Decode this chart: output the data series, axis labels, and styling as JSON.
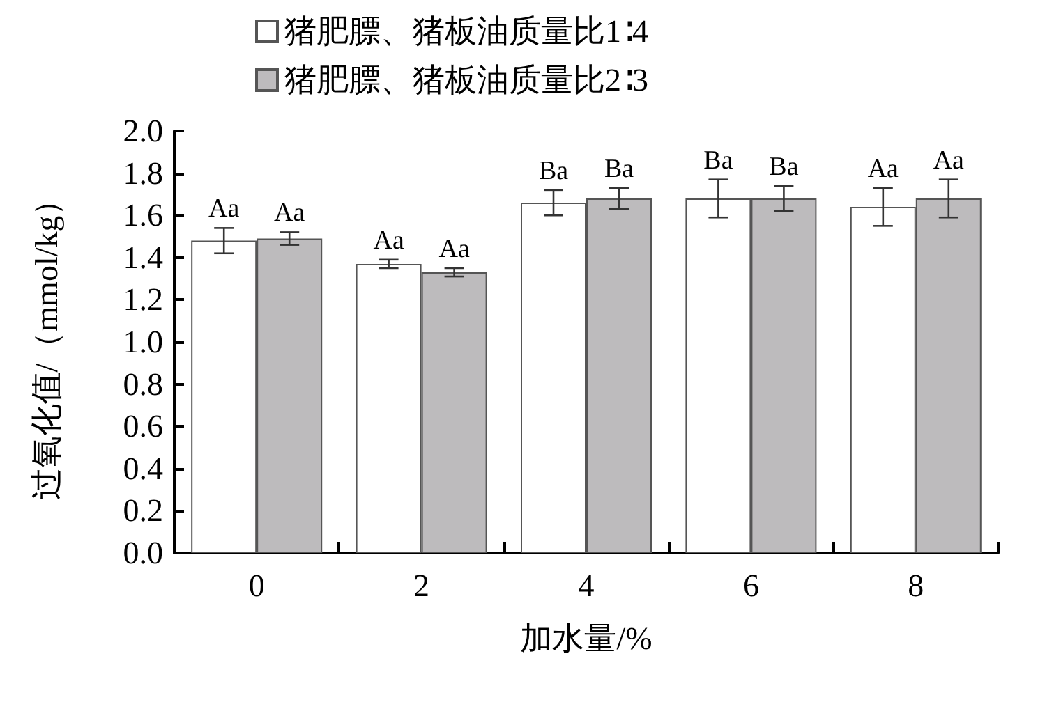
{
  "chart_data": {
    "type": "bar",
    "xlabel": "加水量/%",
    "ylabel": "过氧化值/（mmol/kg）",
    "categories": [
      "0",
      "2",
      "4",
      "6",
      "8"
    ],
    "series": [
      {
        "name": "猪肥膘、猪板油质量比1∶4",
        "color": "#ffffff",
        "values": [
          1.48,
          1.37,
          1.66,
          1.68,
          1.64
        ],
        "errors": [
          0.06,
          0.02,
          0.06,
          0.09,
          0.09
        ],
        "value_labels": [
          "Aa",
          "Aa",
          "Ba",
          "Ba",
          "Aa"
        ]
      },
      {
        "name": "猪肥膘、猪板油质量比2∶3",
        "color": "#bdbbbd",
        "values": [
          1.49,
          1.33,
          1.68,
          1.68,
          1.68
        ],
        "errors": [
          0.03,
          0.02,
          0.05,
          0.06,
          0.09
        ],
        "value_labels": [
          "Aa",
          "Aa",
          "Ba",
          "Ba",
          "Aa"
        ]
      }
    ],
    "ylim": [
      0,
      2.0
    ],
    "yticks": [
      {
        "value": 0,
        "label": "0.0"
      },
      {
        "value": 0.2,
        "label": "0.2"
      },
      {
        "value": 0.4,
        "label": "0.4"
      },
      {
        "value": 0.6,
        "label": "0.6"
      },
      {
        "value": 0.8,
        "label": "0.8"
      },
      {
        "value": 1.0,
        "label": "1.0"
      },
      {
        "value": 1.2,
        "label": "1.2"
      },
      {
        "value": 1.4,
        "label": "1.4"
      },
      {
        "value": 1.6,
        "label": "1.6"
      },
      {
        "value": 1.8,
        "label": "1.8"
      },
      {
        "value": 2.0,
        "label": "2.0"
      }
    ],
    "grid": false,
    "legend": "top"
  }
}
